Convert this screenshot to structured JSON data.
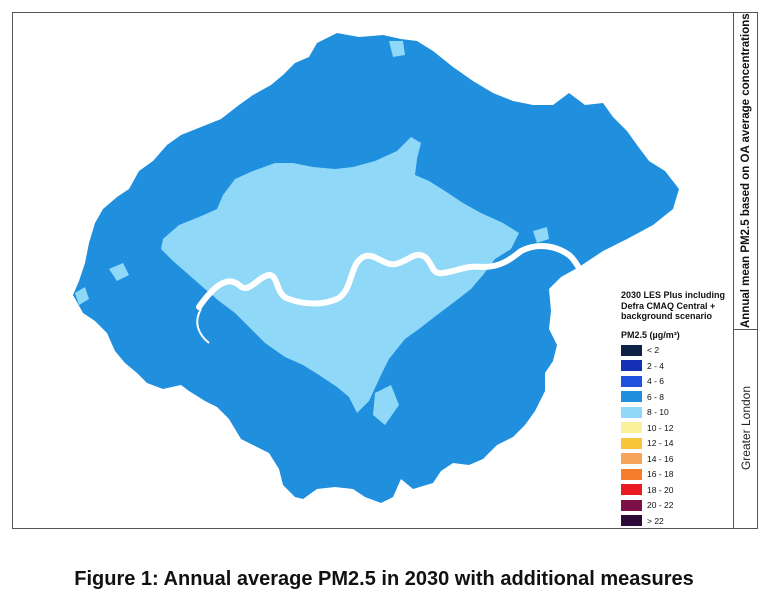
{
  "figure": {
    "caption": "Figure 1: Annual average PM2.5 in 2030 with additional measures",
    "side_label_top": "Annual mean PM2.5 based on OA average concentrations",
    "side_label_bottom": "Greater London"
  },
  "legend": {
    "title_lines": [
      "2030 LES Plus including",
      "Defra CMAQ Central +",
      "background scenario"
    ],
    "unit": "PM2.5 (µg/m³)",
    "items": [
      {
        "label": "< 2",
        "color": "#0d2244"
      },
      {
        "label": "2 - 4",
        "color": "#1530b4"
      },
      {
        "label": "4 - 6",
        "color": "#2151df"
      },
      {
        "label": "6 - 8",
        "color": "#1f8fde"
      },
      {
        "label": "8 - 10",
        "color": "#8fd8f7"
      },
      {
        "label": "10 - 12",
        "color": "#fbf19a"
      },
      {
        "label": "12 - 14",
        "color": "#f7c63a"
      },
      {
        "label": "14 - 16",
        "color": "#f6a35c"
      },
      {
        "label": "16 - 18",
        "color": "#f57d2c"
      },
      {
        "label": "18 - 20",
        "color": "#ea1b23"
      },
      {
        "label": "20 - 22",
        "color": "#7e1048"
      },
      {
        "label": "> 22",
        "color": "#2d0a3a"
      }
    ]
  },
  "map": {
    "base_color": "#1f8fde",
    "inner_color": "#8fd8f7",
    "river_color": "#ffffff"
  }
}
